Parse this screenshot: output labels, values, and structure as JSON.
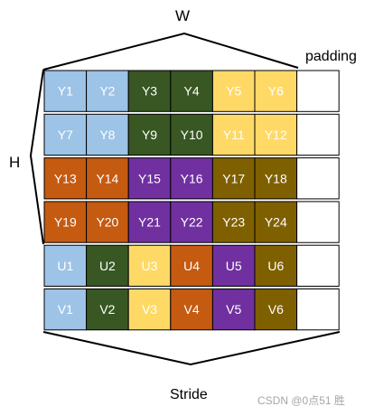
{
  "labels": {
    "width": "W",
    "height": "H",
    "padding": "padding",
    "stride": "Stride",
    "watermark": "CSDN @0点51 胜"
  },
  "colors": {
    "light_blue": "#9dc3e6",
    "dark_green": "#385723",
    "yellow": "#ffd966",
    "orange": "#c55a11",
    "purple": "#7030a0",
    "olive": "#7f6000",
    "padding": "#ffffff",
    "border": "#000000"
  },
  "grid": {
    "rows": [
      [
        {
          "label": "Y1",
          "color": "light_blue"
        },
        {
          "label": "Y2",
          "color": "light_blue"
        },
        {
          "label": "Y3",
          "color": "dark_green"
        },
        {
          "label": "Y4",
          "color": "dark_green"
        },
        {
          "label": "Y5",
          "color": "yellow"
        },
        {
          "label": "Y6",
          "color": "yellow"
        }
      ],
      [
        {
          "label": "Y7",
          "color": "light_blue"
        },
        {
          "label": "Y8",
          "color": "light_blue"
        },
        {
          "label": "Y9",
          "color": "dark_green"
        },
        {
          "label": "Y10",
          "color": "dark_green"
        },
        {
          "label": "Y11",
          "color": "yellow"
        },
        {
          "label": "Y12",
          "color": "yellow"
        }
      ],
      [
        {
          "label": "Y13",
          "color": "orange"
        },
        {
          "label": "Y14",
          "color": "orange"
        },
        {
          "label": "Y15",
          "color": "purple"
        },
        {
          "label": "Y16",
          "color": "purple"
        },
        {
          "label": "Y17",
          "color": "olive"
        },
        {
          "label": "Y18",
          "color": "olive"
        }
      ],
      [
        {
          "label": "Y19",
          "color": "orange"
        },
        {
          "label": "Y20",
          "color": "orange"
        },
        {
          "label": "Y21",
          "color": "purple"
        },
        {
          "label": "Y22",
          "color": "purple"
        },
        {
          "label": "Y23",
          "color": "olive"
        },
        {
          "label": "Y24",
          "color": "olive"
        }
      ],
      [
        {
          "label": "U1",
          "color": "light_blue"
        },
        {
          "label": "U2",
          "color": "dark_green"
        },
        {
          "label": "U3",
          "color": "yellow"
        },
        {
          "label": "U4",
          "color": "orange"
        },
        {
          "label": "U5",
          "color": "purple"
        },
        {
          "label": "U6",
          "color": "olive"
        }
      ],
      [
        {
          "label": "V1",
          "color": "light_blue"
        },
        {
          "label": "V2",
          "color": "dark_green"
        },
        {
          "label": "V3",
          "color": "yellow"
        },
        {
          "label": "V4",
          "color": "orange"
        },
        {
          "label": "V5",
          "color": "purple"
        },
        {
          "label": "V6",
          "color": "olive"
        }
      ]
    ]
  }
}
